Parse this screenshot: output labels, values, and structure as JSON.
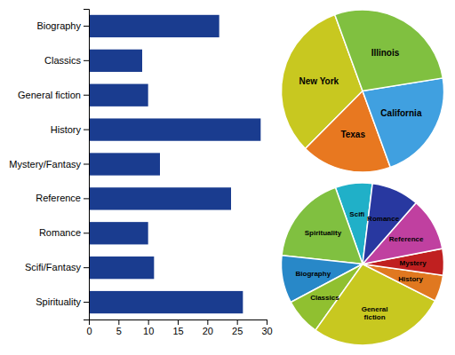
{
  "chart_data": [
    {
      "type": "bar",
      "orientation": "horizontal",
      "categories": [
        "Biography",
        "Classics",
        "General fiction",
        "History",
        "Mystery/Fantasy",
        "Reference",
        "Romance",
        "Scifi/Fantasy",
        "Spirituality"
      ],
      "values": [
        22,
        9,
        10,
        29,
        12,
        24,
        10,
        11,
        26
      ],
      "color": "#1a3c8f",
      "xlim": [
        0,
        30
      ],
      "xticks": [
        0,
        5,
        10,
        15,
        20,
        25,
        30
      ]
    },
    {
      "type": "pie",
      "categories": [
        "New York",
        "Texas",
        "California",
        "Illinois"
      ],
      "values": [
        32,
        18,
        22,
        28
      ],
      "colors": [
        "#c8c820",
        "#e87820",
        "#40a0e0",
        "#80c040"
      ]
    },
    {
      "type": "pie",
      "categories": [
        "Scifi",
        "Spirituality",
        "Biography",
        "Classics",
        "General\nfiction",
        "History",
        "Mystery",
        "Reference",
        "Romance"
      ],
      "values": [
        7,
        17,
        9,
        7,
        26,
        5,
        5,
        10,
        9
      ],
      "colors": [
        "#20b0c8",
        "#80c040",
        "#2888c8",
        "#90c030",
        "#c8c820",
        "#e07820",
        "#c02020",
        "#c040a0",
        "#2838a0"
      ]
    }
  ]
}
